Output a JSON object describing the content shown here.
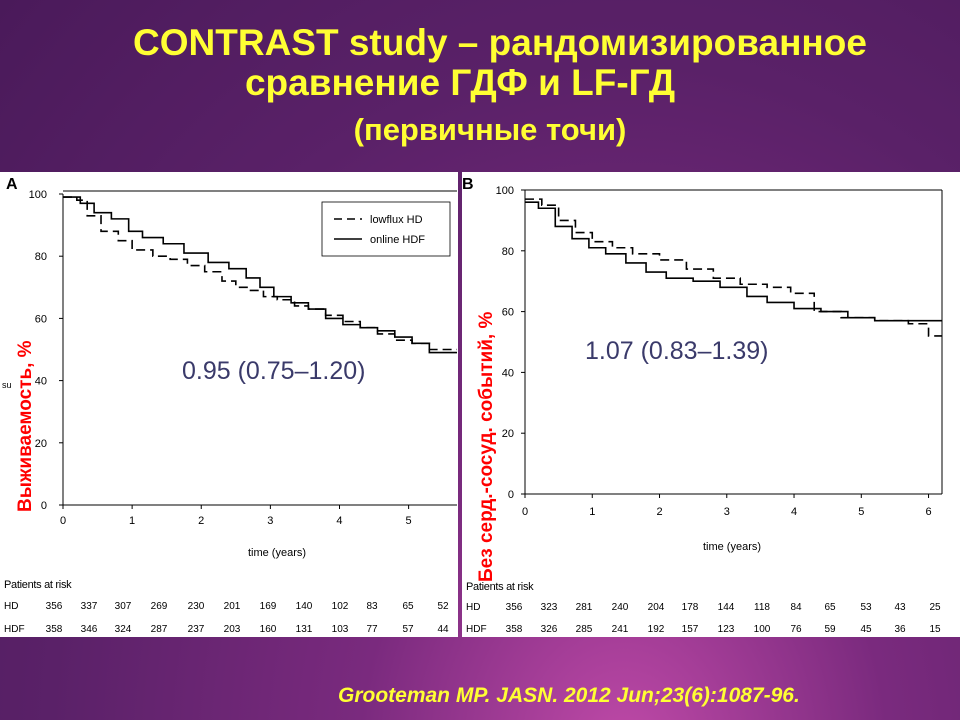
{
  "slide": {
    "title_line1": "CONTRAST study – рандомизированное",
    "title_line2": "сравнение ГДФ и LF-ГД",
    "title_line3": "(первичные точи)",
    "citation": "Grooteman MP. JASN. 2012 Jun;23(6):1087-96.",
    "title_color": "#ffff33",
    "overlay_label_color": "#ff0000"
  },
  "chart_data": [
    {
      "type": "line",
      "panel_label": "A",
      "overlay_ylabel": "Выживаемость, %",
      "xlabel": "time (years)",
      "ylabel_fragment": "su",
      "xlim": [
        0,
        5.7
      ],
      "ylim": [
        0,
        100
      ],
      "xticks": [
        0,
        1,
        2,
        3,
        4,
        5
      ],
      "yticks": [
        0,
        20,
        40,
        60,
        80,
        100
      ],
      "legend": {
        "position": "top-right",
        "entries": [
          "lowflux HD",
          "online HDF"
        ]
      },
      "annotation": "0.95 (0.75–1.20)",
      "series": [
        {
          "name": "lowflux HD",
          "style": "dashed",
          "x": [
            0,
            0.2,
            0.35,
            0.55,
            0.8,
            1.0,
            1.3,
            1.55,
            1.8,
            2.05,
            2.3,
            2.5,
            2.7,
            2.9,
            3.1,
            3.35,
            3.55,
            3.8,
            4.05,
            4.3,
            4.55,
            4.8,
            5.05,
            5.3,
            5.7
          ],
          "y": [
            99,
            98,
            93,
            88,
            85,
            82,
            80,
            79,
            77,
            75,
            72,
            70,
            69,
            67,
            66,
            64,
            63,
            61,
            59,
            57,
            55,
            53,
            52,
            50,
            50
          ]
        },
        {
          "name": "online HDF",
          "style": "solid",
          "x": [
            0,
            0.25,
            0.45,
            0.7,
            0.95,
            1.15,
            1.45,
            1.75,
            2.1,
            2.4,
            2.65,
            2.85,
            3.05,
            3.3,
            3.55,
            3.8,
            4.05,
            4.3,
            4.55,
            4.8,
            5.05,
            5.3,
            5.7
          ],
          "y": [
            99,
            97,
            94,
            92,
            88,
            86,
            84,
            81,
            78,
            76,
            73,
            70,
            67,
            65,
            63,
            60,
            58,
            57,
            56,
            54,
            52,
            49,
            49
          ]
        }
      ],
      "at_risk": {
        "header": "Patients at risk",
        "rows": [
          {
            "label": "HD",
            "values": [
              "356",
              "337",
              "307",
              "269",
              "230",
              "201",
              "169",
              "140",
              "102",
              "83",
              "65",
              "52"
            ]
          },
          {
            "label": "HDF",
            "values": [
              "358",
              "346",
              "324",
              "287",
              "237",
              "203",
              "160",
              "131",
              "103",
              "77",
              "57",
              "44"
            ]
          }
        ]
      }
    },
    {
      "type": "line",
      "panel_label": "B",
      "overlay_ylabel": "Без серд.-сосуд. событий, %",
      "xlabel": "time (years)",
      "xlim": [
        0,
        6.2
      ],
      "ylim": [
        0,
        100
      ],
      "xticks": [
        0,
        1,
        2,
        3,
        4,
        5,
        6
      ],
      "yticks": [
        0,
        20,
        40,
        60,
        80,
        100
      ],
      "annotation": "1.07 (0.83–1.39)",
      "series": [
        {
          "name": "lowflux HD",
          "style": "dashed",
          "x": [
            0,
            0.25,
            0.5,
            0.75,
            1.0,
            1.3,
            1.6,
            2.0,
            2.4,
            2.8,
            3.2,
            3.6,
            3.95,
            4.3,
            4.7,
            5.2,
            5.7,
            6.0,
            6.2
          ],
          "y": [
            97,
            95,
            90,
            86,
            83,
            81,
            79,
            77,
            74,
            71,
            69,
            68,
            66,
            60,
            58,
            57,
            56,
            52,
            52
          ]
        },
        {
          "name": "online HDF",
          "style": "solid",
          "x": [
            0,
            0.2,
            0.45,
            0.7,
            0.95,
            1.2,
            1.5,
            1.8,
            2.1,
            2.5,
            2.9,
            3.3,
            3.6,
            4.0,
            4.4,
            4.8,
            5.2,
            5.6,
            6.2
          ],
          "y": [
            96,
            94,
            88,
            84,
            81,
            79,
            76,
            73,
            71,
            70,
            68,
            65,
            63,
            61,
            60,
            58,
            57,
            57,
            57
          ]
        }
      ],
      "at_risk": {
        "header": "Patients at risk",
        "rows": [
          {
            "label": "HD",
            "values": [
              "356",
              "323",
              "281",
              "240",
              "204",
              "178",
              "144",
              "118",
              "84",
              "65",
              "53",
              "43",
              "25"
            ]
          },
          {
            "label": "HDF",
            "values": [
              "358",
              "326",
              "285",
              "241",
              "192",
              "157",
              "123",
              "100",
              "76",
              "59",
              "45",
              "36",
              "15"
            ]
          }
        ]
      }
    }
  ]
}
